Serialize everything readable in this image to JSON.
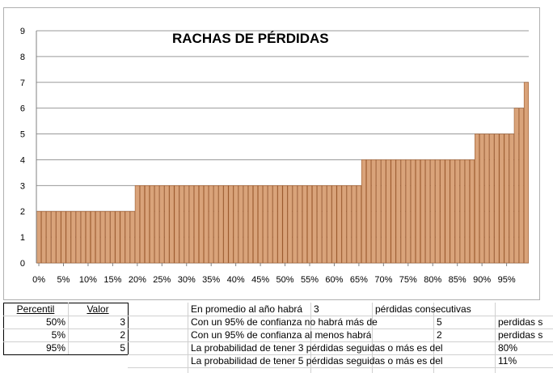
{
  "chart_data": {
    "type": "bar",
    "title": "RACHAS DE PÉRDIDAS",
    "xlabel": "",
    "ylabel": "",
    "ylim": [
      0,
      9
    ],
    "yticks": [
      0,
      1,
      2,
      3,
      4,
      5,
      6,
      7,
      8,
      9
    ],
    "x_tick_labels": [
      "0%",
      "5%",
      "10%",
      "15%",
      "20%",
      "25%",
      "30%",
      "35%",
      "40%",
      "45%",
      "50%",
      "55%",
      "60%",
      "65%",
      "70%",
      "75%",
      "80%",
      "85%",
      "90%",
      "95%"
    ],
    "grid": "horizontal",
    "bar_color": "#d9a37a",
    "bar_edge_color": "#9c5a2e",
    "steps": [
      {
        "from": 0,
        "to": 19.6,
        "value": 2
      },
      {
        "from": 19.6,
        "to": 65.7,
        "value": 3
      },
      {
        "from": 65.7,
        "to": 89.5,
        "value": 4
      },
      {
        "from": 89.5,
        "to": 97.2,
        "value": 5
      },
      {
        "from": 97.2,
        "to": 99.3,
        "value": 6
      },
      {
        "from": 99.3,
        "to": 99.7,
        "value": 7
      },
      {
        "from": 99.7,
        "to": 100,
        "value": 8
      }
    ]
  },
  "sheet": {
    "headers": {
      "percentil": "Percentil",
      "valor": "Valor"
    },
    "rows": [
      {
        "pct": "50%",
        "val": "3"
      },
      {
        "pct": "5%",
        "val": "2"
      },
      {
        "pct": "95%",
        "val": "5"
      }
    ],
    "stats": [
      {
        "text": "En promedio al año habrá",
        "value": "3",
        "suffix": "pérdidas consecutivas"
      },
      {
        "text": "Con un 95% de confianza no habrá más de",
        "value": "5",
        "suffix": "perdidas s"
      },
      {
        "text": "Con un 95% de confianza al menos habrá",
        "value": "2",
        "suffix": "perdidas s"
      },
      {
        "text": "La probabilidad de tener 3 pérdidas seguidas o más es del",
        "value": "",
        "suffix": "80%"
      },
      {
        "text": "La probabilidad de tener 5 pérdidas seguidas o más es del",
        "value": "",
        "suffix": "11%"
      }
    ]
  }
}
